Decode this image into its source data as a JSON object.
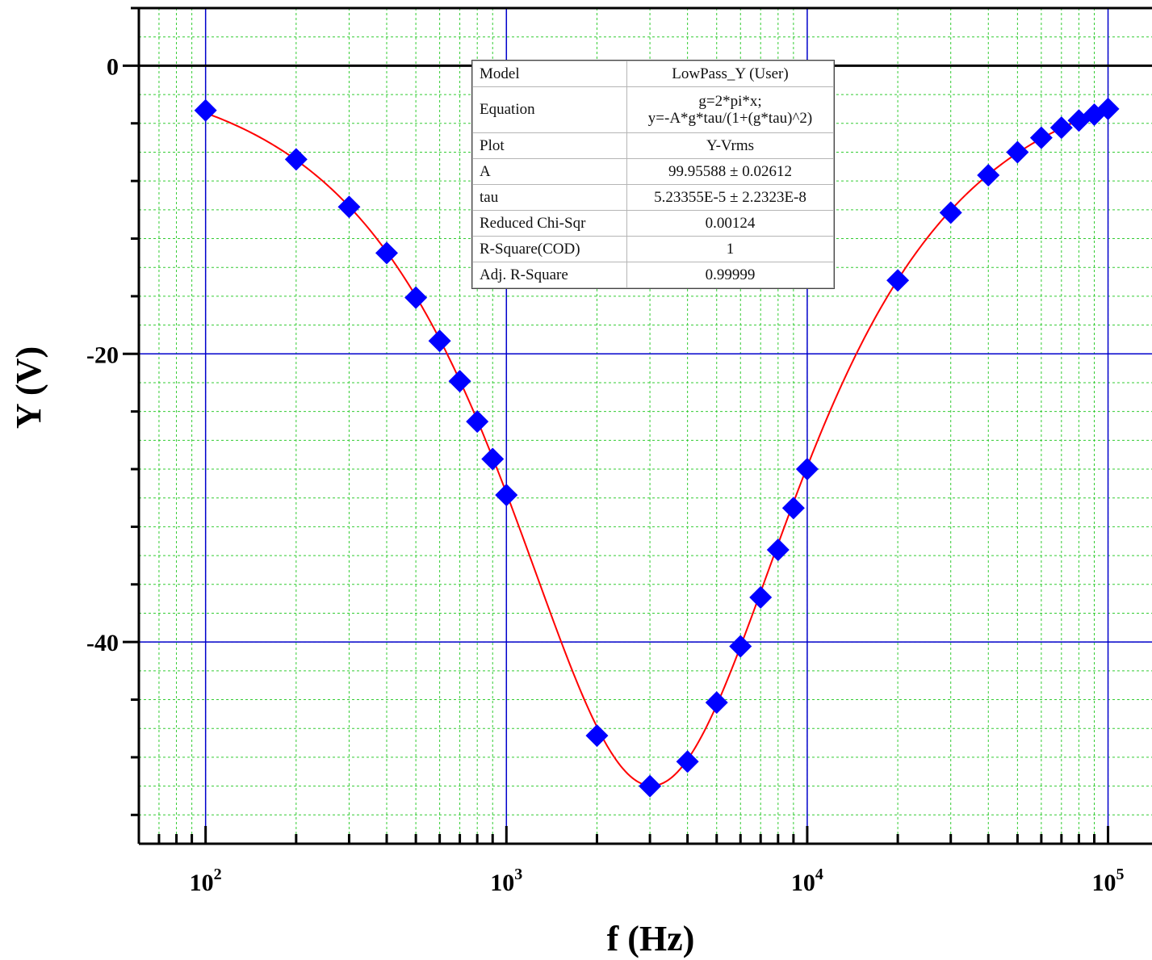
{
  "chart_data": {
    "type": "scatter",
    "xscale": "log",
    "xlim": [
      60,
      140000
    ],
    "ylim": [
      -54,
      4
    ],
    "xlabel": "f (Hz)",
    "ylabel": "Y (V)",
    "x_ticks": [
      {
        "value": 100,
        "base": "10",
        "exp": "2"
      },
      {
        "value": 1000,
        "base": "10",
        "exp": "3"
      },
      {
        "value": 10000,
        "base": "10",
        "exp": "4"
      },
      {
        "value": 100000,
        "base": "10",
        "exp": "5"
      }
    ],
    "y_ticks": [
      {
        "value": 0,
        "label": "0"
      },
      {
        "value": -20,
        "label": "-20"
      },
      {
        "value": -40,
        "label": "-40"
      }
    ],
    "grid": true,
    "series": [
      {
        "marker": "diamond",
        "color": "#0000ff",
        "x": [
          100,
          200,
          300,
          400,
          500,
          600,
          700,
          800,
          900,
          1000,
          2000,
          3000,
          4000,
          5000,
          6000,
          7000,
          8000,
          9000,
          10000,
          20000,
          30000,
          40000,
          50000,
          60000,
          70000,
          80000,
          90000,
          100000
        ],
        "y": [
          -3.1,
          -6.5,
          -9.8,
          -13.0,
          -16.1,
          -19.1,
          -21.9,
          -24.7,
          -27.3,
          -29.8,
          -46.5,
          -50.0,
          -48.3,
          -44.2,
          -40.3,
          -36.9,
          -33.6,
          -30.7,
          -28.0,
          -14.9,
          -10.2,
          -7.6,
          -6.0,
          -5.0,
          -4.3,
          -3.8,
          -3.4,
          -3.0
        ]
      },
      {
        "type": "line",
        "color": "#ff0000",
        "model": "y=-A*g*tau/(1+(g*tau)^2)",
        "A": 99.95588,
        "tau": 5.23355e-05
      }
    ],
    "fit_table": [
      {
        "key": "Model",
        "value": "LowPass_Y (User)"
      },
      {
        "key": "Equation",
        "value_lines": [
          "g=2*pi*x;",
          "y=-A*g*tau/(1+(g*tau)^2)"
        ]
      },
      {
        "key": "Plot",
        "value": "Y-Vrms"
      },
      {
        "key": "A",
        "value": "99.95588 ± 0.02612"
      },
      {
        "key": "tau",
        "value": "5.23355E-5 ± 2.2323E-8"
      },
      {
        "key": "Reduced Chi-Sqr",
        "value": "0.00124"
      },
      {
        "key": "R-Square(COD)",
        "value": "1"
      },
      {
        "key": "Adj. R-Square",
        "value": "0.99999"
      }
    ],
    "colors": {
      "major_grid": "#0000cc",
      "minor_grid": "#33cc33",
      "zero_line": "#000000",
      "fit_curve": "#ff0000",
      "markers": "#0000ff"
    }
  }
}
